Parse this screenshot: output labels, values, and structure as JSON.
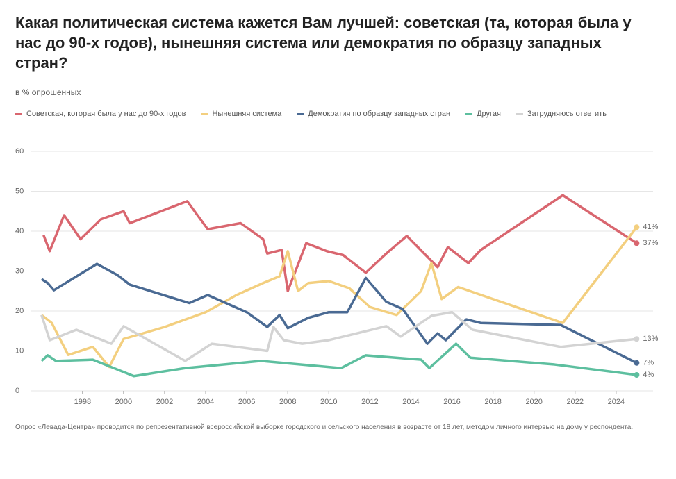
{
  "chart_data": {
    "type": "line",
    "title": "Какая политическая система кажется Вам лучшей: советская (та, которая была у нас до 90-х годов), нынешняя система или демократия по образцу западных стран?",
    "subtitle": "в % опрошенных",
    "note": "Опрос «Левада-Центра» проводится по репрезентативной всероссийской выборке городского и сельского населения в возрасте от 18 лет, методом личного интервью на дому у респондента.",
    "xlim": [
      1995.5,
      2025.8
    ],
    "ylim": [
      0,
      60
    ],
    "xticks": [
      1998,
      2000,
      2002,
      2004,
      2006,
      2008,
      2010,
      2012,
      2014,
      2016,
      2018,
      2020,
      2022,
      2024
    ],
    "yticks": [
      0,
      10,
      20,
      30,
      40,
      50,
      60
    ],
    "grid": true,
    "series": [
      {
        "name": "Советская, которая была у нас до 90-х годов",
        "color": "#d9666f",
        "x": [
          1996.1,
          1996.4,
          1997.1,
          1997.9,
          1998.9,
          2000,
          2000.3,
          2003.1,
          2004.1,
          2005.7,
          2006.8,
          2007,
          2007.7,
          2008,
          2008.9,
          2009.9,
          2010.7,
          2011.8,
          2012.8,
          2013.8,
          2015.3,
          2015.8,
          2016.8,
          2017.4,
          2021.4,
          2025
        ],
        "values": [
          39,
          35,
          44,
          38,
          43,
          45,
          42,
          47.5,
          40.5,
          42,
          38,
          34.4,
          35.3,
          25,
          37,
          35,
          34,
          29.6,
          34.4,
          38.8,
          31,
          36,
          32,
          35.3,
          49,
          37
        ],
        "value_labels": [
          null,
          null,
          null,
          null,
          null,
          null,
          null,
          null,
          null,
          null,
          null,
          null,
          null,
          null,
          null,
          null,
          null,
          null,
          null,
          null,
          null,
          null,
          null,
          null,
          null,
          "37%"
        ]
      },
      {
        "name": "Нынешняя система",
        "color": "#f3cf7f",
        "x": [
          1996,
          1996.5,
          1997.3,
          1998.5,
          1999.3,
          2000,
          2002,
          2004,
          2005.5,
          2006.8,
          2007.6,
          2008,
          2008.5,
          2009,
          2010,
          2011,
          2012,
          2013.3,
          2014.5,
          2015,
          2015.5,
          2016.3,
          2021.4,
          2025
        ],
        "values": [
          19,
          17,
          9,
          11,
          6,
          13,
          16,
          19.7,
          24,
          27,
          28.7,
          35,
          25,
          27,
          27.5,
          25.7,
          21,
          19,
          25,
          32,
          23,
          26,
          17,
          41
        ],
        "value_labels": [
          null,
          null,
          null,
          null,
          null,
          null,
          null,
          null,
          null,
          null,
          null,
          null,
          null,
          null,
          null,
          null,
          null,
          null,
          null,
          null,
          null,
          null,
          null,
          "41%"
        ]
      },
      {
        "name": "Демократия по образцу западных стран",
        "color": "#4a6a93",
        "x": [
          1996,
          1996.3,
          1996.6,
          1998.7,
          1999.7,
          2000.3,
          2003.2,
          2004.1,
          2006,
          2007,
          2007.6,
          2008,
          2009,
          2010,
          2010.9,
          2011.8,
          2012.8,
          2013.6,
          2014.8,
          2015.3,
          2015.7,
          2016.7,
          2017.4,
          2021.3,
          2025
        ],
        "values": [
          28,
          27,
          25.2,
          31.8,
          29,
          26.6,
          22,
          24,
          19.7,
          16,
          19,
          15.7,
          18.3,
          19.7,
          19.7,
          28.3,
          22.3,
          20.5,
          11.8,
          14.4,
          12.7,
          17.9,
          17,
          16.5,
          7
        ],
        "value_labels": [
          null,
          null,
          null,
          null,
          null,
          null,
          null,
          null,
          null,
          null,
          null,
          null,
          null,
          null,
          null,
          null,
          null,
          null,
          null,
          null,
          null,
          null,
          null,
          null,
          "7%"
        ]
      },
      {
        "name": "Другая",
        "color": "#5dbf9f",
        "x": [
          1996,
          1996.3,
          1996.7,
          1998.5,
          2000.5,
          2003,
          2006.7,
          2010.6,
          2011.8,
          2014.5,
          2014.9,
          2016.2,
          2016.9,
          2021,
          2025
        ],
        "values": [
          7.5,
          8.9,
          7.5,
          7.8,
          3.7,
          5.7,
          7.5,
          5.7,
          8.9,
          7.8,
          5.7,
          11.8,
          8.3,
          6.6,
          4
        ],
        "value_labels": [
          null,
          null,
          null,
          null,
          null,
          null,
          null,
          null,
          null,
          null,
          null,
          null,
          null,
          null,
          "4%"
        ]
      },
      {
        "name": "Затрудняюсь ответить",
        "color": "#d3d3d3",
        "x": [
          1996,
          1996.4,
          1997.7,
          1999.4,
          2000,
          2003,
          2004.3,
          2007,
          2007.3,
          2007.8,
          2008.7,
          2010,
          2012.8,
          2013.5,
          2015,
          2016,
          2017,
          2021.3,
          2025
        ],
        "values": [
          19,
          12.7,
          15.3,
          11.8,
          16.2,
          7.5,
          11.8,
          10,
          16,
          12.7,
          11.8,
          12.7,
          16.2,
          13.6,
          18.8,
          19.7,
          15.3,
          11,
          13
        ],
        "value_labels": [
          null,
          null,
          null,
          null,
          null,
          null,
          null,
          null,
          null,
          null,
          null,
          null,
          null,
          null,
          null,
          null,
          null,
          null,
          "13%"
        ]
      }
    ]
  }
}
